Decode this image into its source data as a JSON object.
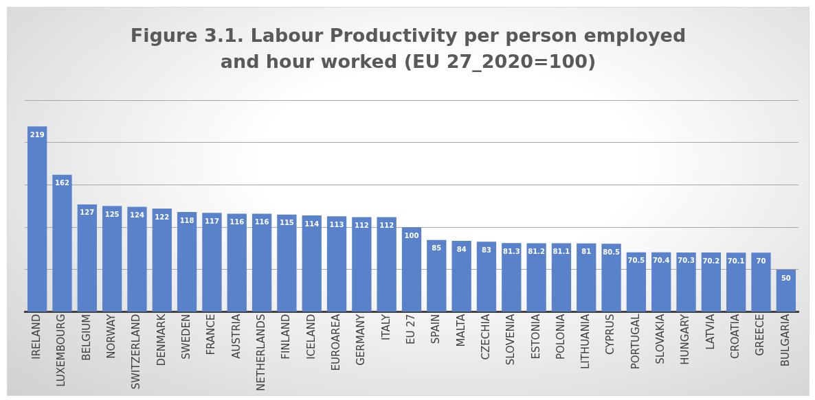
{
  "chart_data": {
    "type": "bar",
    "title": "Figure 3.1. Labour Productivity per person employed and hour worked (EU 27_2020=100)",
    "categories": [
      "IRELAND",
      "LUXEMBOURG",
      "BELGIUM",
      "NORWAY",
      "SWITZERLAND",
      "DENMARK",
      "SWEDEN",
      "FRANCE",
      "AUSTRIA",
      "NETHERLANDS",
      "FINLAND",
      "ICELAND",
      "EUROAREA",
      "GERMANY",
      "ITALY",
      "EU 27",
      "SPAIN",
      "MALTA",
      "CZECHIA",
      "SLOVENIA",
      "ESTONIA",
      "POLONIA",
      "LITHUANIA",
      "CYPRUS",
      "PORTUGAL",
      "SLOVAKIA",
      "HUNGARY",
      "LATVIA",
      "CROATIA",
      "GREECE",
      "BULGARIA"
    ],
    "values": [
      219,
      162,
      127,
      125,
      124,
      122,
      118,
      117,
      116,
      116,
      115,
      114,
      113,
      112,
      112,
      100,
      85,
      84,
      83,
      81.3,
      81.2,
      81.1,
      81,
      80.5,
      70.5,
      70.4,
      70.3,
      70.2,
      70.1,
      70,
      50
    ],
    "color": "#5a82cb",
    "data_labels": true,
    "ylim": [
      0,
      250
    ],
    "yticks": [
      {
        "value": 0,
        "label": null
      },
      {
        "value": 50,
        "label": null
      },
      {
        "value": 100,
        "label": null
      },
      {
        "value": 150,
        "label": null
      },
      {
        "value": 200,
        "label": null
      },
      {
        "value": 250,
        "label": null
      }
    ],
    "grid": "y",
    "tick_labels": "x"
  }
}
